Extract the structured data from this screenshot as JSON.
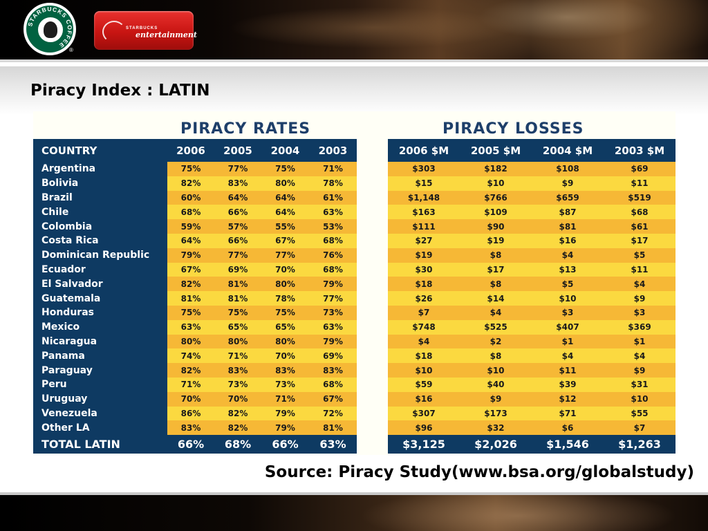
{
  "header": {
    "logo_text": "STARBUCKS COFFEE",
    "badge_small": "STARBUCKS",
    "badge_big": "entertainment"
  },
  "page_title": "Piracy Index : LATIN",
  "rates": {
    "heading": "PIRACY RATES",
    "columns": [
      "COUNTRY",
      "2006",
      "2005",
      "2004",
      "2003"
    ]
  },
  "losses": {
    "heading": "PIRACY LOSSES",
    "columns": [
      "2006 $M",
      "2005 $M",
      "2004 $M",
      "2003 $M"
    ]
  },
  "rows": [
    {
      "country": "Argentina",
      "rates": [
        "75%",
        "77%",
        "75%",
        "71%"
      ],
      "losses": [
        "$303",
        "$182",
        "$108",
        "$69"
      ]
    },
    {
      "country": "Bolivia",
      "rates": [
        "82%",
        "83%",
        "80%",
        "78%"
      ],
      "losses": [
        "$15",
        "$10",
        "$9",
        "$11"
      ]
    },
    {
      "country": "Brazil",
      "rates": [
        "60%",
        "64%",
        "64%",
        "61%"
      ],
      "losses": [
        "$1,148",
        "$766",
        "$659",
        "$519"
      ]
    },
    {
      "country": "Chile",
      "rates": [
        "68%",
        "66%",
        "64%",
        "63%"
      ],
      "losses": [
        "$163",
        "$109",
        "$87",
        "$68"
      ]
    },
    {
      "country": "Colombia",
      "rates": [
        "59%",
        "57%",
        "55%",
        "53%"
      ],
      "losses": [
        "$111",
        "$90",
        "$81",
        "$61"
      ]
    },
    {
      "country": "Costa Rica",
      "rates": [
        "64%",
        "66%",
        "67%",
        "68%"
      ],
      "losses": [
        "$27",
        "$19",
        "$16",
        "$17"
      ]
    },
    {
      "country": "Dominican Republic",
      "rates": [
        "79%",
        "77%",
        "77%",
        "76%"
      ],
      "losses": [
        "$19",
        "$8",
        "$4",
        "$5"
      ]
    },
    {
      "country": "Ecuador",
      "rates": [
        "67%",
        "69%",
        "70%",
        "68%"
      ],
      "losses": [
        "$30",
        "$17",
        "$13",
        "$11"
      ]
    },
    {
      "country": "El Salvador",
      "rates": [
        "82%",
        "81%",
        "80%",
        "79%"
      ],
      "losses": [
        "$18",
        "$8",
        "$5",
        "$4"
      ]
    },
    {
      "country": "Guatemala",
      "rates": [
        "81%",
        "81%",
        "78%",
        "77%"
      ],
      "losses": [
        "$26",
        "$14",
        "$10",
        "$9"
      ]
    },
    {
      "country": "Honduras",
      "rates": [
        "75%",
        "75%",
        "75%",
        "73%"
      ],
      "losses": [
        "$7",
        "$4",
        "$3",
        "$3"
      ]
    },
    {
      "country": "Mexico",
      "rates": [
        "63%",
        "65%",
        "65%",
        "63%"
      ],
      "losses": [
        "$748",
        "$525",
        "$407",
        "$369"
      ]
    },
    {
      "country": "Nicaragua",
      "rates": [
        "80%",
        "80%",
        "80%",
        "79%"
      ],
      "losses": [
        "$4",
        "$2",
        "$1",
        "$1"
      ]
    },
    {
      "country": "Panama",
      "rates": [
        "74%",
        "71%",
        "70%",
        "69%"
      ],
      "losses": [
        "$18",
        "$8",
        "$4",
        "$4"
      ]
    },
    {
      "country": "Paraguay",
      "rates": [
        "82%",
        "83%",
        "83%",
        "83%"
      ],
      "losses": [
        "$10",
        "$10",
        "$11",
        "$9"
      ]
    },
    {
      "country": "Peru",
      "rates": [
        "71%",
        "73%",
        "73%",
        "68%"
      ],
      "losses": [
        "$59",
        "$40",
        "$39",
        "$31"
      ]
    },
    {
      "country": "Uruguay",
      "rates": [
        "70%",
        "70%",
        "71%",
        "67%"
      ],
      "losses": [
        "$16",
        "$9",
        "$12",
        "$10"
      ]
    },
    {
      "country": "Venezuela",
      "rates": [
        "86%",
        "82%",
        "79%",
        "72%"
      ],
      "losses": [
        "$307",
        "$173",
        "$71",
        "$55"
      ]
    },
    {
      "country": "Other LA",
      "rates": [
        "83%",
        "82%",
        "79%",
        "81%"
      ],
      "losses": [
        "$96",
        "$32",
        "$6",
        "$7"
      ]
    }
  ],
  "total": {
    "country": "TOTAL LATIN",
    "rates": [
      "66%",
      "68%",
      "66%",
      "63%"
    ],
    "losses": [
      "$3,125",
      "$2,026",
      "$1,546",
      "$1,263"
    ]
  },
  "source": "Source: Piracy Study(www.bsa.org/globalstudy)"
}
